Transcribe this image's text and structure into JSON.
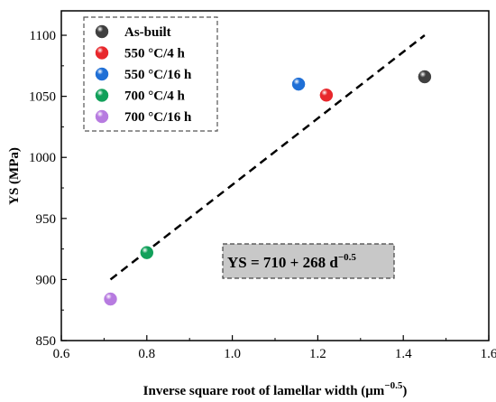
{
  "chart_data": {
    "type": "scatter",
    "xlabel": "Inverse square root of lamellar width (μm",
    "xlabel_exp": "−0.5",
    "xlabel_tail": ")",
    "ylabel": "YS (MPa)",
    "xlim": [
      0.6,
      1.6
    ],
    "ylim": [
      850,
      1120
    ],
    "xticks": [
      "0.6",
      "0.8",
      "1.0",
      "1.2",
      "1.4",
      "1.6"
    ],
    "yticks": [
      "850",
      "900",
      "950",
      "1000",
      "1050",
      "1100"
    ],
    "legend_position": "top-left",
    "series": [
      {
        "name": "As-built",
        "color": "#404040",
        "x": [
          1.45
        ],
        "y": [
          1066
        ]
      },
      {
        "name": "550 °C/4 h",
        "color": "#e8272c",
        "x": [
          1.22
        ],
        "y": [
          1051
        ]
      },
      {
        "name": "550 °C/16 h",
        "color": "#1f6fd6",
        "x": [
          1.155
        ],
        "y": [
          1060
        ]
      },
      {
        "name": "700 °C/4 h",
        "color": "#11a05a",
        "x": [
          0.8
        ],
        "y": [
          922
        ]
      },
      {
        "name": "700 °C/16 h",
        "color": "#b77be0",
        "x": [
          0.715
        ],
        "y": [
          884
        ]
      }
    ],
    "fit_line": {
      "x": [
        0.715,
        1.45
      ],
      "y": [
        900,
        1100
      ],
      "style": "dashed"
    },
    "annotation": {
      "text": "YS = 710 + 268 d",
      "exponent": "−0.5"
    }
  }
}
